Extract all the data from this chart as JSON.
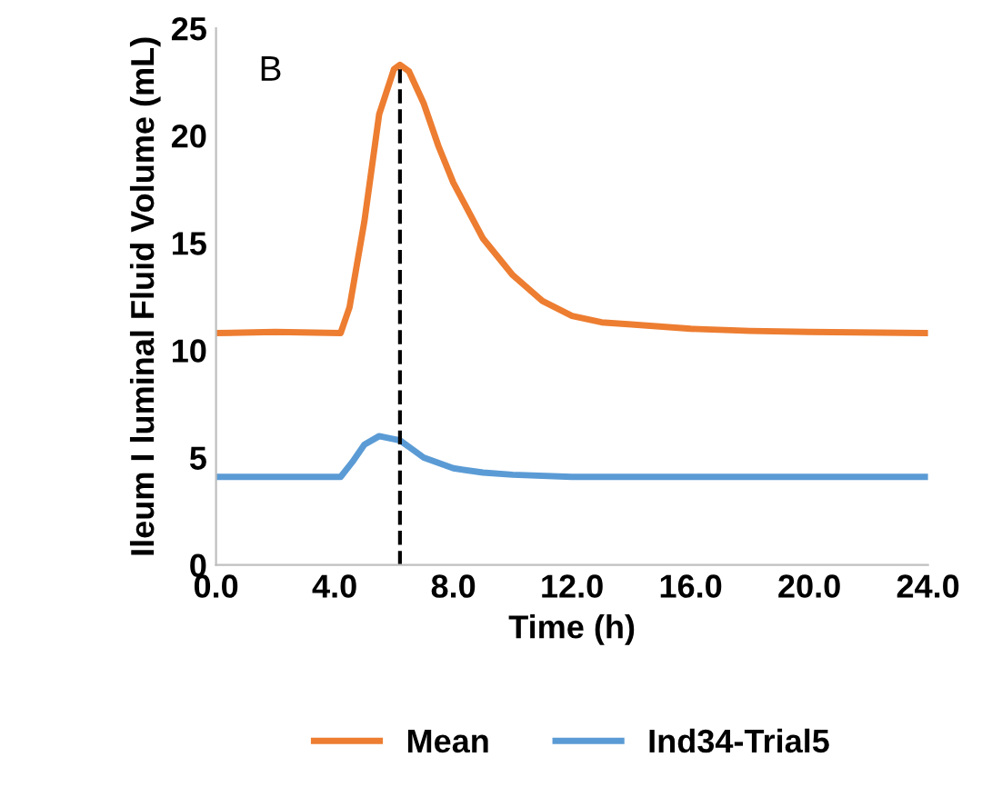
{
  "chart_data": {
    "type": "line",
    "xlabel": "Time (h)",
    "ylabel": "Ileum I luminal Fluid Volume (mL)",
    "annotations": [
      "B"
    ],
    "series": [
      {
        "name": "Mean",
        "color": "#ed7d31",
        "x": [
          0,
          2,
          4.2,
          4.5,
          5,
          5.5,
          6,
          6.2,
          6.5,
          7,
          7.5,
          8,
          9,
          10,
          11,
          12,
          13,
          14,
          16,
          18,
          20,
          24
        ],
        "values": [
          10.8,
          10.85,
          10.8,
          12,
          16,
          21,
          23.1,
          23.3,
          23,
          21.5,
          19.5,
          17.8,
          15.2,
          13.5,
          12.3,
          11.6,
          11.3,
          11.2,
          11.0,
          10.9,
          10.85,
          10.8
        ]
      },
      {
        "name": "Ind34-Trial5",
        "color": "#5b9bd5",
        "x": [
          0,
          4.2,
          4.6,
          5,
          5.5,
          6.2,
          6.6,
          7,
          8,
          9,
          10,
          12,
          24
        ],
        "values": [
          4.1,
          4.1,
          4.8,
          5.6,
          6.0,
          5.8,
          5.4,
          5.0,
          4.5,
          4.3,
          4.2,
          4.1,
          4.1
        ]
      }
    ],
    "ref_lines": [
      {
        "axis": "x",
        "value": 6.2,
        "color": "#000000",
        "line_style": "dashed"
      }
    ],
    "xlim": [
      0,
      24
    ],
    "ylim": [
      0,
      25
    ],
    "xticks": [
      {
        "value": 0,
        "label": "0.0"
      },
      {
        "value": 4,
        "label": "4.0"
      },
      {
        "value": 8,
        "label": "8.0"
      },
      {
        "value": 12,
        "label": "12.0"
      },
      {
        "value": 16,
        "label": "16.0"
      },
      {
        "value": 20,
        "label": "20.0"
      },
      {
        "value": 24,
        "label": "24.0"
      }
    ],
    "yticks": [
      0,
      5,
      10,
      15,
      20,
      25
    ],
    "grid": false,
    "legend": "bottom",
    "line_style": "solid",
    "marker": "none"
  }
}
